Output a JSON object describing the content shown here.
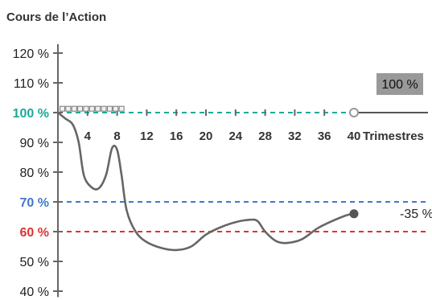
{
  "chart_data": {
    "type": "line",
    "title": "Cours de l’Action",
    "xlabel": "Trimestres",
    "x_ticks": [
      "4",
      "8",
      "12",
      "16",
      "20",
      "24",
      "28",
      "32",
      "36",
      "40"
    ],
    "y_ticks": [
      "120 %",
      "110 %",
      "100 %",
      "90 %",
      "80 %",
      "70 %",
      "60 %",
      "50 %",
      "40 %"
    ],
    "y_tick_values": [
      120,
      110,
      100,
      90,
      80,
      70,
      60,
      50,
      40
    ],
    "xlim": [
      0,
      40
    ],
    "ylim": [
      38,
      123
    ],
    "series": [
      {
        "color": "#666666",
        "x": [
          0,
          1,
          2,
          2.8,
          3.5,
          4.5,
          5.5,
          6.5,
          7.3,
          8,
          8.6,
          9.3,
          10.5,
          12,
          14,
          16,
          18,
          20,
          22,
          24,
          26,
          27,
          28,
          29.5,
          31,
          33,
          35,
          37,
          39,
          40
        ],
        "y": [
          100,
          98,
          96,
          90,
          79,
          75,
          74.5,
          79,
          88,
          87.5,
          79,
          67,
          60,
          56.5,
          54.5,
          53.8,
          55,
          59,
          61.5,
          63.2,
          64,
          63.5,
          60,
          56.8,
          56.2,
          57.5,
          61,
          63.5,
          65.5,
          66
        ]
      }
    ],
    "markers": [
      {
        "x": 0.6,
        "y": 101.3
      },
      {
        "x": 1.4,
        "y": 101.3
      },
      {
        "x": 2.2,
        "y": 101.3
      },
      {
        "x": 3.0,
        "y": 101.3
      },
      {
        "x": 3.8,
        "y": 101.3
      },
      {
        "x": 4.6,
        "y": 101.3
      },
      {
        "x": 5.4,
        "y": 101.3
      },
      {
        "x": 6.2,
        "y": 101.3
      },
      {
        "x": 7.0,
        "y": 101.3
      },
      {
        "x": 7.8,
        "y": 101.3
      },
      {
        "x": 8.6,
        "y": 101.3
      }
    ],
    "reference_lines": [
      {
        "y": 100,
        "color": "#1aaa99"
      },
      {
        "y": 70,
        "color": "#4477cc"
      },
      {
        "y": 60,
        "color": "#dd3333"
      }
    ],
    "highlight_ticks": [
      {
        "value": 100,
        "color": "#1aaa99"
      },
      {
        "value": 70,
        "color": "#4477cc"
      },
      {
        "value": 60,
        "color": "#dd3333"
      }
    ],
    "end_line": {
      "x_start": 40,
      "y": 100,
      "color": "#555555"
    },
    "end_point_label": {
      "text": "-35 %",
      "x": 40,
      "y": 66
    },
    "box_label": {
      "text": "100 %",
      "background": "#999999"
    },
    "axis_color": "#666666",
    "grid": false
  }
}
